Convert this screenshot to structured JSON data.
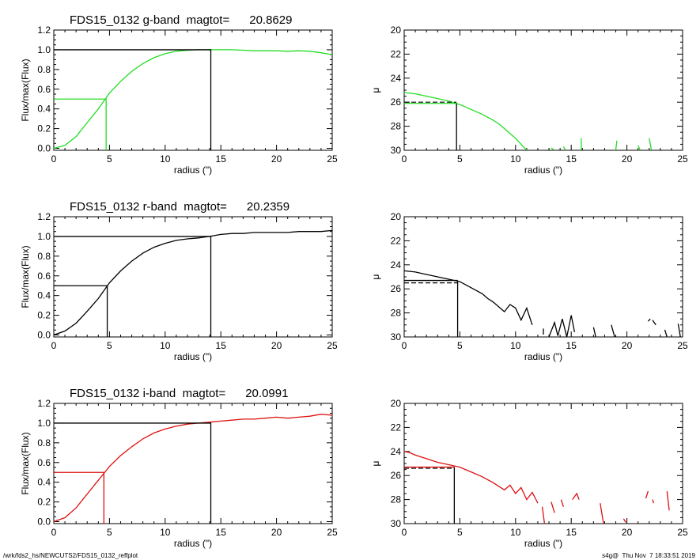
{
  "footer": {
    "left": "/wrk/fds2_hs/NEWCUTS2/FDS15_0132_reffplot",
    "right": "s4g@  Thu Nov  7 18:33:51 2019"
  },
  "colors": {
    "g": "#22dd22",
    "r": "#000000",
    "i": "#dd1111",
    "axes": "#000000"
  },
  "chart_data": [
    {
      "type": "line",
      "panel": "g-band growth curve",
      "title": "FDS15_0132 g-band  magtot=      20.8629",
      "xlabel": "radius (\")",
      "ylabel": "Flux/max(Flux)",
      "xlim": [
        0,
        25
      ],
      "ylim": [
        -0.02,
        1.2
      ],
      "xticks": [
        0,
        5,
        10,
        15,
        20,
        25
      ],
      "yticks": [
        "0.0",
        "0.2",
        "0.4",
        "0.6",
        "0.8",
        "1.0",
        "1.2"
      ],
      "color": "#22dd22",
      "x": [
        0,
        1,
        2,
        3,
        4,
        5,
        6,
        7,
        8,
        9,
        10,
        11,
        12,
        13,
        14,
        15,
        16,
        17,
        18,
        19,
        20,
        21,
        22,
        23,
        24,
        25
      ],
      "y": [
        0,
        0.03,
        0.12,
        0.26,
        0.4,
        0.56,
        0.68,
        0.78,
        0.86,
        0.92,
        0.96,
        0.985,
        0.995,
        1.0,
        1.0,
        1.0,
        1.0,
        0.995,
        0.99,
        0.99,
        0.99,
        0.985,
        0.99,
        0.985,
        0.97,
        0.95
      ],
      "reff": 4.7,
      "half": 0.5,
      "rtot": 14.1,
      "full": 1.0
    },
    {
      "type": "line",
      "panel": "g-band surface brightness profile",
      "title": "",
      "xlabel": "radius (\")",
      "ylabel": "μ",
      "xlim": [
        0,
        25
      ],
      "ylim": [
        30,
        20
      ],
      "inverted_y": true,
      "xticks": [
        0,
        5,
        10,
        15,
        20,
        25
      ],
      "yticks": [
        "20",
        "22",
        "24",
        "26",
        "28",
        "30"
      ],
      "color": "#22dd22",
      "x": [
        0,
        1,
        2,
        3,
        4,
        5,
        6,
        7,
        8,
        8.5,
        9,
        9.5,
        10,
        10.5,
        11
      ],
      "y": [
        25.2,
        25.3,
        25.5,
        25.7,
        25.9,
        26.2,
        26.6,
        27.0,
        27.5,
        27.8,
        28.2,
        28.6,
        29.0,
        29.5,
        30.0
      ],
      "fragments": [
        [
          13.2,
          29.8,
          13.5,
          30.0
        ],
        [
          14.3,
          29.7,
          14.5,
          30.0
        ],
        [
          15.9,
          29.0,
          15.9,
          30.0
        ],
        [
          19.1,
          29.2,
          19.0,
          30.0
        ],
        [
          21.0,
          29.6,
          21.2,
          30.0
        ],
        [
          22.0,
          29.0,
          22.2,
          30.0
        ]
      ],
      "reff": 4.7,
      "mu_e": 26.1,
      "mu_dash": 26.0
    },
    {
      "type": "line",
      "panel": "r-band growth curve",
      "title": "FDS15_0132 r-band  magtot=      20.2359",
      "xlabel": "radius (\")",
      "ylabel": "Flux/max(Flux)",
      "xlim": [
        0,
        25
      ],
      "ylim": [
        -0.02,
        1.2
      ],
      "xticks": [
        0,
        5,
        10,
        15,
        20,
        25
      ],
      "yticks": [
        "0.0",
        "0.2",
        "0.4",
        "0.6",
        "0.8",
        "1.0",
        "1.2"
      ],
      "color": "#000000",
      "x": [
        0,
        1,
        2,
        3,
        4,
        5,
        6,
        7,
        8,
        9,
        10,
        11,
        12,
        13,
        14,
        15,
        16,
        17,
        18,
        19,
        20,
        21,
        22,
        23,
        24,
        25
      ],
      "y": [
        0,
        0.04,
        0.12,
        0.24,
        0.37,
        0.53,
        0.65,
        0.75,
        0.83,
        0.89,
        0.93,
        0.96,
        0.975,
        0.985,
        1.0,
        1.02,
        1.03,
        1.03,
        1.04,
        1.04,
        1.04,
        1.04,
        1.05,
        1.05,
        1.05,
        1.06
      ],
      "reff": 4.8,
      "half": 0.5,
      "rtot": 14.1,
      "full": 1.0
    },
    {
      "type": "line",
      "panel": "r-band surface brightness profile",
      "title": "",
      "xlabel": "radius (\")",
      "ylabel": "μ",
      "xlim": [
        0,
        25
      ],
      "ylim": [
        30,
        20
      ],
      "inverted_y": true,
      "xticks": [
        0,
        5,
        10,
        15,
        20,
        25
      ],
      "yticks": [
        "20",
        "22",
        "24",
        "26",
        "28",
        "30"
      ],
      "color": "#000000",
      "x": [
        0,
        1,
        2,
        3,
        4,
        5,
        6,
        7,
        7.5,
        8,
        8.5,
        9,
        9.5,
        10,
        10.5,
        11,
        11.5
      ],
      "y": [
        24.5,
        24.6,
        24.8,
        25.0,
        25.2,
        25.4,
        25.9,
        26.4,
        26.8,
        27.1,
        27.5,
        27.9,
        27.3,
        27.6,
        28.6,
        27.6,
        29.0
      ],
      "fragments": [
        [
          12.5,
          29.8,
          12.5,
          29.3
        ],
        [
          13.0,
          30.0,
          13.5,
          28.8,
          13.8,
          29.9,
          14.2,
          28.5,
          14.6,
          30.0,
          15.0,
          28.2,
          15.3,
          29.6
        ],
        [
          17.0,
          29.2,
          17.2,
          30.0
        ],
        [
          18.6,
          29.0,
          18.9,
          30.0
        ],
        [
          21.9,
          28.7,
          22.1,
          28.5
        ],
        [
          22.3,
          28.6,
          22.6,
          29.0
        ],
        [
          23.4,
          29.4,
          23.6,
          30.0
        ],
        [
          24.6,
          28.9,
          24.8,
          30.0
        ]
      ],
      "reff": 4.8,
      "mu_e": 25.3,
      "mu_dash": 25.5
    },
    {
      "type": "line",
      "panel": "i-band growth curve",
      "title": "FDS15_0132 i-band  magtot=      20.0991",
      "xlabel": "radius (\")",
      "ylabel": "Flux/max(Flux)",
      "xlim": [
        0,
        25
      ],
      "ylim": [
        -0.02,
        1.2
      ],
      "xticks": [
        0,
        5,
        10,
        15,
        20,
        25
      ],
      "yticks": [
        "0.0",
        "0.2",
        "0.4",
        "0.6",
        "0.8",
        "1.0",
        "1.2"
      ],
      "color": "#dd1111",
      "x": [
        0,
        1,
        2,
        3,
        4,
        5,
        6,
        7,
        8,
        9,
        10,
        11,
        12,
        13,
        14,
        15,
        16,
        17,
        18,
        19,
        20,
        21,
        22,
        23,
        24,
        25
      ],
      "y": [
        0,
        0.04,
        0.14,
        0.28,
        0.42,
        0.56,
        0.67,
        0.76,
        0.84,
        0.9,
        0.94,
        0.97,
        0.99,
        1.0,
        1.01,
        1.02,
        1.03,
        1.04,
        1.04,
        1.05,
        1.06,
        1.05,
        1.06,
        1.07,
        1.09,
        1.08
      ],
      "reff": 4.5,
      "half": 0.5,
      "rtot": 14.1,
      "full": 1.0
    },
    {
      "type": "line",
      "panel": "i-band surface brightness profile",
      "title": "",
      "xlabel": "radius (\")",
      "ylabel": "μ",
      "xlim": [
        0,
        25
      ],
      "ylim": [
        30,
        20
      ],
      "inverted_y": true,
      "xticks": [
        0,
        5,
        10,
        15,
        20,
        25
      ],
      "yticks": [
        "20",
        "22",
        "24",
        "26",
        "28",
        "30"
      ],
      "color": "#dd1111",
      "x": [
        0,
        0.5,
        1,
        2,
        3,
        4,
        5,
        6,
        7,
        8,
        8.5,
        9,
        9.5,
        10,
        10.5,
        11,
        11.5,
        12
      ],
      "y": [
        24.0,
        24.1,
        24.3,
        24.6,
        24.9,
        25.1,
        25.3,
        25.7,
        26.1,
        26.6,
        26.9,
        27.2,
        26.8,
        27.5,
        27.0,
        28.0,
        27.4,
        28.3
      ],
      "fragments": [
        [
          12.4,
          28.6,
          12.6,
          30.0
        ],
        [
          13.2,
          28.2,
          13.5,
          29.1
        ],
        [
          14.1,
          28.0,
          14.3,
          28.6
        ],
        [
          15.1,
          28.0,
          15.5,
          27.5,
          15.7,
          28.0
        ],
        [
          17.6,
          28.3,
          17.9,
          30.0
        ],
        [
          19.7,
          29.6,
          19.9,
          29.9
        ],
        [
          21.7,
          27.9,
          21.9,
          27.3
        ],
        [
          22.3,
          28.0,
          22.4,
          28.3
        ],
        [
          23.6,
          27.3,
          23.8,
          28.9
        ]
      ],
      "reff": 4.5,
      "mu_e": 25.3,
      "mu_dash": 25.4
    }
  ]
}
